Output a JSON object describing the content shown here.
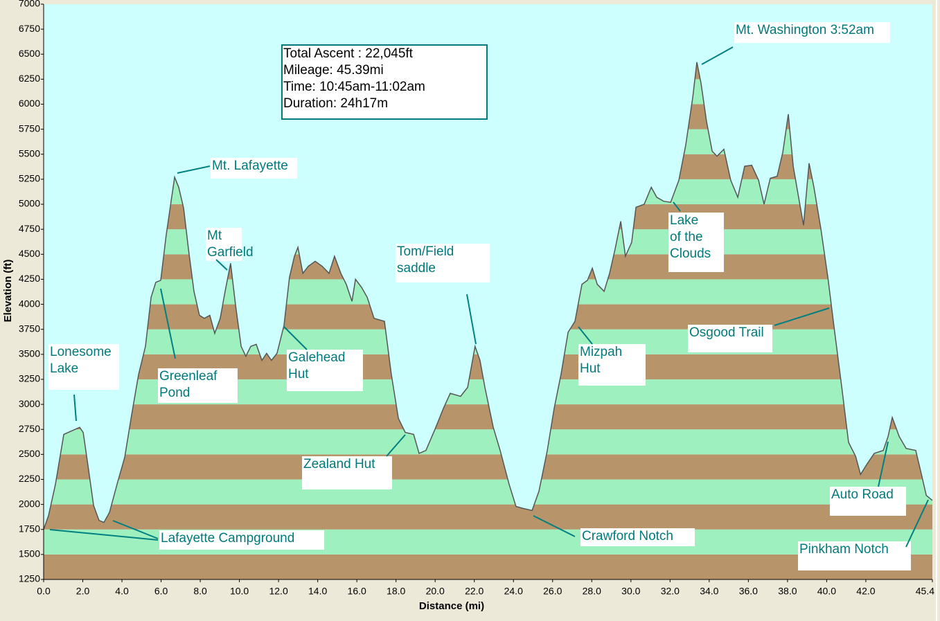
{
  "chart_data": {
    "type": "area",
    "x_label": "Distance   (mi)",
    "y_label": "Elevation (ft)",
    "xlim": [
      0,
      45.4
    ],
    "ylim": [
      1250,
      7000
    ],
    "xticks": [
      {
        "value": 0,
        "label": "0.0"
      },
      {
        "value": 2,
        "label": "2.0"
      },
      {
        "value": 4,
        "label": "4.0"
      },
      {
        "value": 6,
        "label": "6.0"
      },
      {
        "value": 8,
        "label": "8.0"
      },
      {
        "value": 10,
        "label": "10.0"
      },
      {
        "value": 12,
        "label": "12.0"
      },
      {
        "value": 14,
        "label": "14.0"
      },
      {
        "value": 16,
        "label": "16.0"
      },
      {
        "value": 18,
        "label": "18.0"
      },
      {
        "value": 20,
        "label": "20.0"
      },
      {
        "value": 22,
        "label": "22.0"
      },
      {
        "value": 24,
        "label": "24.0"
      },
      {
        "value": 26,
        "label": "26.0"
      },
      {
        "value": 28,
        "label": "28.0"
      },
      {
        "value": 30,
        "label": "30.0"
      },
      {
        "value": 32,
        "label": "32.0"
      },
      {
        "value": 34,
        "label": "34.0"
      },
      {
        "value": 36,
        "label": "36.0"
      },
      {
        "value": 38,
        "label": "38.0"
      },
      {
        "value": 40,
        "label": "40.0"
      },
      {
        "value": 42,
        "label": "42.0"
      },
      45.4
    ],
    "yticks": [
      1250,
      1500,
      1750,
      2000,
      2250,
      2500,
      2750,
      3000,
      3250,
      3500,
      3750,
      4000,
      4250,
      4500,
      4750,
      5000,
      5250,
      5500,
      5750,
      6000,
      6250,
      6500,
      6750,
      7000
    ],
    "band_colors": [
      "#b8946a",
      "#9ff0bf"
    ],
    "background": "#ccfffe",
    "x": [
      0,
      0.25,
      0.6,
      1.03,
      1.49,
      1.84,
      2.02,
      2.3,
      2.55,
      2.83,
      3.08,
      3.36,
      3.79,
      4.14,
      4.49,
      4.85,
      5.2,
      5.49,
      5.73,
      5.98,
      6.26,
      6.51,
      6.69,
      6.9,
      7.15,
      7.4,
      7.68,
      7.96,
      8.21,
      8.49,
      8.74,
      9.02,
      9.27,
      9.55,
      9.8,
      10.09,
      10.33,
      10.58,
      10.86,
      11.15,
      11.39,
      11.64,
      11.92,
      12.28,
      12.56,
      12.81,
      12.99,
      13.24,
      13.52,
      13.87,
      14.23,
      14.58,
      14.86,
      15.18,
      15.46,
      15.75,
      15.93,
      16.24,
      16.53,
      16.88,
      17.41,
      17.76,
      18.12,
      18.47,
      18.9,
      19.18,
      19.53,
      19.99,
      20.42,
      20.77,
      21.3,
      21.66,
      22.04,
      22.29,
      22.54,
      22.97,
      23.32,
      23.78,
      24.13,
      24.49,
      24.95,
      25.3,
      25.73,
      26.08,
      26.43,
      26.79,
      27.14,
      27.5,
      27.78,
      28.03,
      28.28,
      28.63,
      28.91,
      29.19,
      29.48,
      29.72,
      30.04,
      30.26,
      30.68,
      31.04,
      31.32,
      31.67,
      32.03,
      32.45,
      32.8,
      33.16,
      33.37,
      33.58,
      33.86,
      34.15,
      34.4,
      34.75,
      35.1,
      35.46,
      35.81,
      36.17,
      36.52,
      36.8,
      37.12,
      37.47,
      37.76,
      38.04,
      38.29,
      38.54,
      38.82,
      39.1,
      39.35,
      39.7,
      40.06,
      40.41,
      40.77,
      41.12,
      41.48,
      41.73,
      42.08,
      42.43,
      42.89,
      43.14,
      43.35,
      43.7,
      44.06,
      44.55,
      44.84,
      45.09,
      45.4
    ],
    "values": [
      1750,
      1890,
      2200,
      2700,
      2740,
      2770,
      2720,
      2340,
      1990,
      1840,
      1820,
      1920,
      2230,
      2470,
      2890,
      3300,
      3580,
      4070,
      4220,
      4240,
      4690,
      5030,
      5270,
      5170,
      4960,
      4550,
      4130,
      3890,
      3860,
      3890,
      3710,
      3860,
      4130,
      4410,
      4000,
      3580,
      3480,
      3580,
      3600,
      3440,
      3510,
      3440,
      3510,
      3790,
      4270,
      4480,
      4570,
      4310,
      4380,
      4430,
      4380,
      4310,
      4480,
      4310,
      4200,
      4030,
      4250,
      4170,
      4070,
      3860,
      3830,
      3300,
      2860,
      2720,
      2700,
      2510,
      2540,
      2750,
      2960,
      3110,
      3080,
      3170,
      3580,
      3440,
      3170,
      2770,
      2540,
      2200,
      1980,
      1960,
      1940,
      2130,
      2540,
      2960,
      3300,
      3720,
      3830,
      4200,
      4240,
      4360,
      4200,
      4130,
      4310,
      4550,
      4830,
      4480,
      4620,
      4970,
      5000,
      5170,
      5070,
      5030,
      5020,
      5240,
      5590,
      6070,
      6420,
      6210,
      5830,
      5530,
      5480,
      5550,
      5240,
      5070,
      5380,
      5390,
      5240,
      5000,
      5260,
      5280,
      5520,
      5900,
      5380,
      5100,
      4790,
      5410,
      5170,
      4760,
      4270,
      3720,
      3170,
      2620,
      2480,
      2300,
      2410,
      2510,
      2540,
      2680,
      2870,
      2680,
      2560,
      2540,
      2300,
      2090,
      2040
    ],
    "info": [
      "Total Ascent : 22,045ft",
      "Mileage: 45.39mi",
      "Time: 10:45am-11:02am",
      "Duration: 24h17m"
    ],
    "annotations": [
      [
        "Lonesome",
        "Lake"
      ],
      [
        "Lafayette Campground"
      ],
      [
        "Greenleaf",
        "Pond"
      ],
      [
        "Mt",
        "Garfield"
      ],
      [
        "Mt. Lafayette"
      ],
      [
        "Galehead",
        "Hut"
      ],
      [
        "Zealand Hut"
      ],
      [
        "Tom/Field",
        "saddle"
      ],
      [
        "Mt. Washington 3:52am"
      ],
      [
        "Lake",
        "of the",
        "Clouds"
      ],
      [
        "Mizpah",
        "Hut"
      ],
      [
        "Osgood Trail"
      ],
      [
        "Crawford Notch"
      ],
      [
        "Auto Road"
      ],
      [
        "Pinkham Notch"
      ]
    ]
  }
}
